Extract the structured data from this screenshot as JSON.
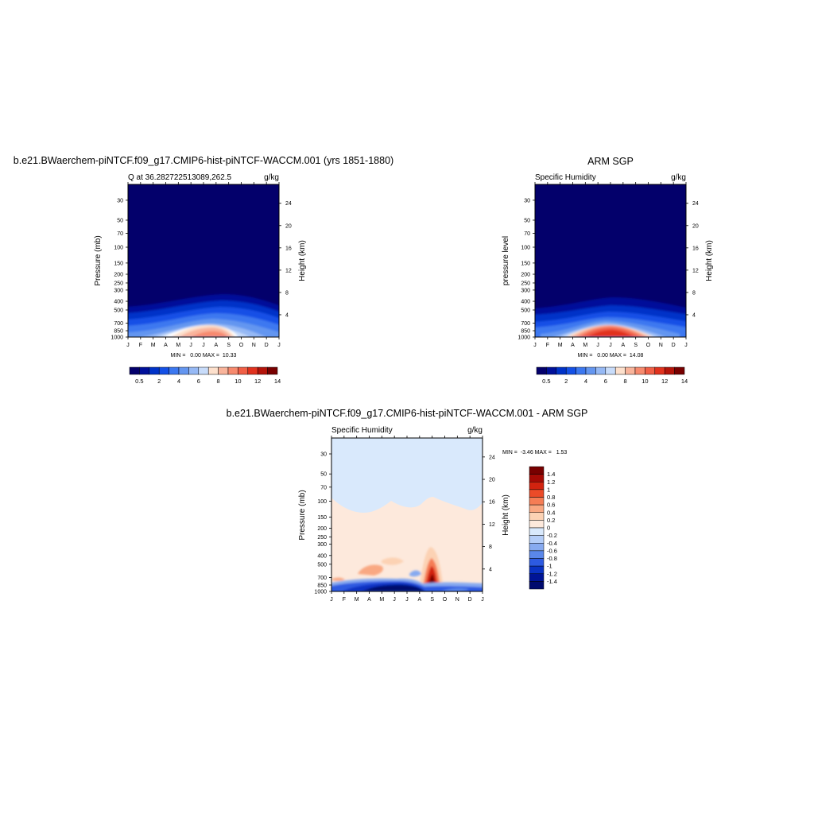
{
  "panel_model": {
    "title": "b.e21.BWaerchem-piNTCF.f09_g17.CMIP6-hist-piNTCF-WACCM.001 (yrs 1851-1880)",
    "left_string": "Q at 36.282722513089,262.5",
    "right_string": "g/kg",
    "ylabel": "Pressure (mb)",
    "ylabel_right": "Height (km)",
    "min_max_text": "MIN =   0.00 MAX =  10.33",
    "stats": {
      "min": 0.0,
      "max": 10.33
    }
  },
  "panel_obs": {
    "title": "ARM SGP",
    "left_string": "Specific Humidity",
    "right_string": "g/kg",
    "ylabel": "pressure level",
    "ylabel_right": "Height (km)",
    "min_max_text": "MIN =   0.00 MAX =  14.08",
    "stats": {
      "min": 0.0,
      "max": 14.08
    }
  },
  "panel_diff": {
    "title": "b.e21.BWaerchem-piNTCF.f09_g17.CMIP6-hist-piNTCF-WACCM.001 - ARM SGP",
    "left_string": "Specific Humidity",
    "right_string": "g/kg",
    "ylabel": "Pressure (mb)",
    "ylabel_right": "Height (km)",
    "min_max_text": "MIN =  -3.46 MAX =   1.53",
    "stats": {
      "min": -3.46,
      "max": 1.53
    }
  },
  "chart_data": [
    {
      "type": "heatmap",
      "title": "b.e21.BWaerchem-piNTCF.f09_g17.CMIP6-hist-piNTCF-WACCM.001 (yrs 1851-1880)",
      "variable": "Q at 36.282722513089,262.5",
      "units": "g/kg",
      "x_ticks": [
        "J",
        "F",
        "M",
        "A",
        "M",
        "J",
        "J",
        "A",
        "S",
        "O",
        "N",
        "D",
        "J"
      ],
      "y_ticks_left": [
        "30",
        "50",
        "70",
        "100",
        "150",
        "200",
        "250",
        "300",
        "400",
        "500",
        "700",
        "850",
        "1000"
      ],
      "y_ticks_right": [
        "4",
        "8",
        "12",
        "16",
        "20",
        "24"
      ],
      "ylim": [
        1000,
        20
      ],
      "peak": {
        "month": "Jul",
        "pressure": 925,
        "value": 10.33
      },
      "colorbar_labels": [
        "0.5",
        "2",
        "4",
        "6",
        "8",
        "10",
        "12",
        "14"
      ]
    },
    {
      "type": "heatmap",
      "title": "ARM SGP",
      "variable": "Specific Humidity",
      "units": "g/kg",
      "x_ticks": [
        "J",
        "F",
        "M",
        "A",
        "M",
        "J",
        "J",
        "A",
        "S",
        "O",
        "N",
        "D",
        "J"
      ],
      "y_ticks_left": [
        "30",
        "50",
        "70",
        "100",
        "150",
        "200",
        "250",
        "300",
        "400",
        "500",
        "700",
        "850",
        "1000"
      ],
      "y_ticks_right": [
        "4",
        "8",
        "12",
        "16",
        "20",
        "24"
      ],
      "ylim": [
        1000,
        20
      ],
      "peak": {
        "month": "Jul",
        "pressure": 950,
        "value": 14.08
      },
      "colorbar_labels": [
        "0.5",
        "2",
        "4",
        "6",
        "8",
        "10",
        "12",
        "14"
      ]
    },
    {
      "type": "heatmap",
      "title": "b.e21.BWaerchem-piNTCF.f09_g17.CMIP6-hist-piNTCF-WACCM.001 - ARM SGP",
      "variable": "Specific Humidity",
      "units": "g/kg",
      "x_ticks": [
        "J",
        "F",
        "M",
        "A",
        "M",
        "J",
        "J",
        "A",
        "S",
        "O",
        "N",
        "D",
        "J"
      ],
      "y_ticks_left": [
        "30",
        "50",
        "70",
        "100",
        "150",
        "200",
        "250",
        "300",
        "400",
        "500",
        "700",
        "850",
        "1000"
      ],
      "y_ticks_right": [
        "4",
        "8",
        "12",
        "16",
        "20",
        "24"
      ],
      "ylim": [
        1000,
        20
      ],
      "colorbar_labels": [
        "1.4",
        "1.2",
        "1",
        "0.8",
        "0.6",
        "0.4",
        "0.2",
        "0",
        "-0.2",
        "-0.4",
        "-0.6",
        "-0.8",
        "-1",
        "-1.2",
        "-1.4"
      ]
    }
  ],
  "colors": {
    "abs_scale": [
      "#03006b",
      "#00109a",
      "#0032c8",
      "#1450e6",
      "#3c78f0",
      "#6496f0",
      "#96b9f5",
      "#c8dcfa",
      "#fde0cc",
      "#f9b49b",
      "#f78a6e",
      "#f15f46",
      "#e1321e",
      "#b4140a",
      "#780000"
    ],
    "diff_scale": [
      "#780000",
      "#a50a05",
      "#d2230f",
      "#eb4b28",
      "#f57d55",
      "#f9a882",
      "#fcd2b4",
      "#fde9dc",
      "#d9e9fc",
      "#b4cdf8",
      "#87aaf0",
      "#5a87ea",
      "#2d5ae1",
      "#0a32c3",
      "#001496",
      "#000a6e"
    ]
  }
}
